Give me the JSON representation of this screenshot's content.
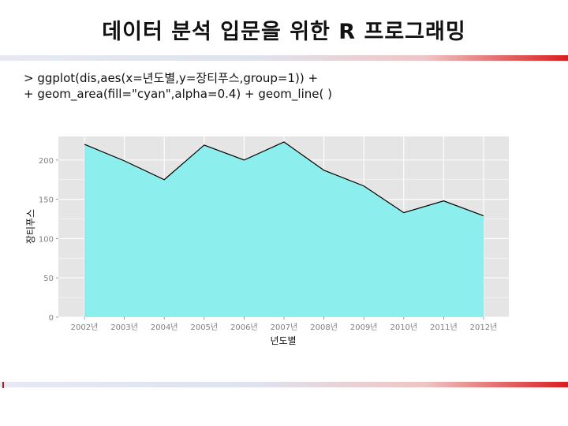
{
  "slide": {
    "title": "데이터 분석 입문을 위한 R 프로그래밍",
    "code_line1": "> ggplot(dis,aes(x=년도별,y=장티푸스,group=1)) +",
    "code_line2": "+ geom_area(fill=\"cyan\",alpha=0.4) + geom_line( )"
  },
  "colors": {
    "panel_bg": "#e5e5e5",
    "grid": "#ffffff",
    "area_fill": "#8defed",
    "line": "#000000",
    "tick_text": "#7f7f7f",
    "axis_title": "#111111",
    "accent_red": "#d81e1e"
  },
  "chart_data": {
    "type": "area",
    "categories": [
      "2002년",
      "2003년",
      "2004년",
      "2005년",
      "2006년",
      "2007년",
      "2008년",
      "2009년",
      "2010년",
      "2011년",
      "2012년"
    ],
    "values": [
      220,
      199,
      175,
      219,
      200,
      223,
      187,
      167,
      133,
      148,
      129
    ],
    "xlabel": "년도별",
    "ylabel": "장티푸스",
    "ylim": [
      0,
      230
    ],
    "yticks": [
      0,
      50,
      100,
      150,
      200
    ],
    "ytick_labels": [
      "0",
      "50",
      "100",
      "150",
      "200"
    ],
    "grid": true,
    "legend": "none"
  }
}
